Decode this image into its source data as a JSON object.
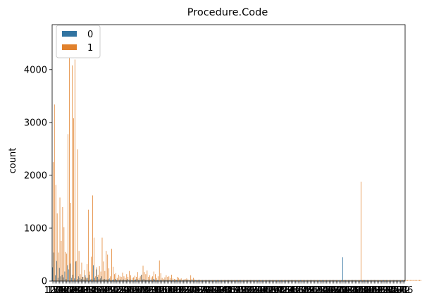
{
  "chart_data": {
    "type": "bar",
    "title": "Procedure.Code",
    "xlabel": "",
    "ylabel": "count",
    "ylim": [
      0,
      4850
    ],
    "y_ticks": [
      0,
      1000,
      2000,
      3000,
      4000
    ],
    "x_ticks_note": "hundreds of overlapping, unreadable procedure code tick labels",
    "legend": {
      "title": "",
      "placement": "top-left"
    },
    "series": [
      {
        "name": "0",
        "color": "#3274a1",
        "values": [
          260,
          540,
          110,
          380,
          60,
          250,
          90,
          120,
          70,
          180,
          40,
          300,
          220,
          330,
          60,
          120,
          50,
          370,
          40,
          90,
          60,
          40,
          80,
          30,
          110,
          50,
          60,
          120,
          30,
          40,
          300,
          60,
          220,
          80,
          40,
          50,
          90,
          30,
          40,
          30,
          30,
          40,
          50,
          20,
          20,
          30,
          40,
          20,
          30,
          20,
          30,
          20,
          30,
          20,
          20,
          40,
          20,
          30,
          20,
          20,
          20,
          30,
          40,
          20,
          20,
          120,
          30,
          40,
          20,
          20,
          20,
          30,
          20,
          30,
          40,
          30,
          20,
          20,
          20,
          20,
          20,
          20,
          20,
          20,
          20,
          20,
          20,
          20,
          20,
          20,
          20,
          20,
          20,
          20,
          20,
          20,
          20,
          20,
          20,
          20,
          20,
          20,
          20,
          20,
          20,
          20,
          20,
          20,
          20,
          20,
          20,
          20,
          20,
          20,
          20,
          20,
          20,
          20,
          20,
          20,
          20,
          20,
          20,
          20,
          20,
          20,
          20,
          20,
          20,
          20,
          20,
          20,
          20,
          20,
          20,
          20,
          20,
          20,
          20,
          20,
          20,
          20,
          20,
          20,
          20,
          20,
          20,
          20,
          20,
          20,
          20,
          20,
          20,
          20,
          20,
          20,
          20,
          20,
          20,
          20,
          20,
          20,
          20,
          20,
          20,
          20,
          20,
          20,
          20,
          20,
          20,
          20,
          20,
          20,
          20,
          20,
          20,
          20,
          20,
          20,
          20,
          20,
          20,
          20,
          20,
          20,
          20,
          20,
          20,
          20,
          20,
          20,
          20,
          20,
          20,
          20,
          20,
          20,
          20,
          20,
          20,
          20,
          20,
          20,
          20,
          20,
          20,
          20,
          20,
          20,
          20,
          20,
          20,
          450,
          20,
          20,
          20,
          20,
          20,
          20,
          20,
          20,
          20,
          20,
          20,
          20,
          20,
          20,
          20,
          20,
          20,
          20,
          20,
          20,
          20,
          20,
          20,
          20,
          20,
          20,
          20,
          20,
          20,
          20,
          20,
          20,
          20,
          20,
          20,
          20,
          20,
          20,
          20,
          20,
          20,
          20,
          20,
          20,
          20
        ]
      },
      {
        "name": "1",
        "color": "#e1812c",
        "values": [
          2250,
          3340,
          1820,
          1280,
          540,
          1580,
          760,
          1400,
          1020,
          550,
          520,
          2780,
          4280,
          1480,
          4080,
          3080,
          4190,
          380,
          2490,
          570,
          130,
          350,
          80,
          210,
          70,
          320,
          1350,
          180,
          460,
          1620,
          820,
          90,
          260,
          120,
          280,
          180,
          820,
          370,
          190,
          570,
          500,
          240,
          90,
          610,
          270,
          130,
          150,
          60,
          120,
          90,
          80,
          160,
          90,
          60,
          130,
          80,
          190,
          110,
          60,
          70,
          100,
          80,
          170,
          60,
          90,
          120,
          290,
          170,
          130,
          200,
          80,
          110,
          70,
          90,
          180,
          130,
          60,
          90,
          390,
          150,
          60,
          40,
          70,
          110,
          80,
          90,
          60,
          120,
          50,
          40,
          30,
          80,
          60,
          40,
          50,
          20,
          30,
          40,
          50,
          30,
          20,
          110,
          40,
          60,
          30,
          20,
          20,
          30,
          20,
          20,
          20,
          20,
          20,
          20,
          20,
          20,
          20,
          20,
          20,
          20,
          20,
          20,
          20,
          20,
          20,
          20,
          20,
          20,
          20,
          20,
          20,
          20,
          20,
          20,
          20,
          20,
          20,
          20,
          20,
          20,
          20,
          20,
          20,
          20,
          20,
          20,
          20,
          20,
          20,
          20,
          20,
          20,
          20,
          20,
          20,
          20,
          20,
          20,
          20,
          20,
          20,
          20,
          20,
          20,
          20,
          20,
          20,
          20,
          20,
          20,
          20,
          20,
          20,
          20,
          20,
          20,
          20,
          20,
          20,
          20,
          20,
          20,
          20,
          20,
          20,
          20,
          20,
          20,
          20,
          20,
          20,
          20,
          20,
          20,
          20,
          20,
          20,
          20,
          20,
          20,
          20,
          20,
          20,
          20,
          20,
          20,
          20,
          20,
          20,
          20,
          20,
          20,
          20,
          20,
          20,
          20,
          20,
          20,
          20,
          20,
          20,
          20,
          20,
          20,
          20,
          20,
          1880,
          20,
          20,
          20,
          20,
          20,
          20,
          20,
          20,
          20,
          20,
          20,
          20,
          20,
          20,
          20,
          20,
          20,
          20,
          20,
          20,
          20,
          20,
          20,
          20,
          20,
          20,
          20,
          20,
          20,
          20,
          20,
          20,
          20,
          20,
          20,
          20,
          20,
          20,
          20,
          20,
          20,
          20,
          20,
          20,
          20
        ]
      }
    ]
  }
}
